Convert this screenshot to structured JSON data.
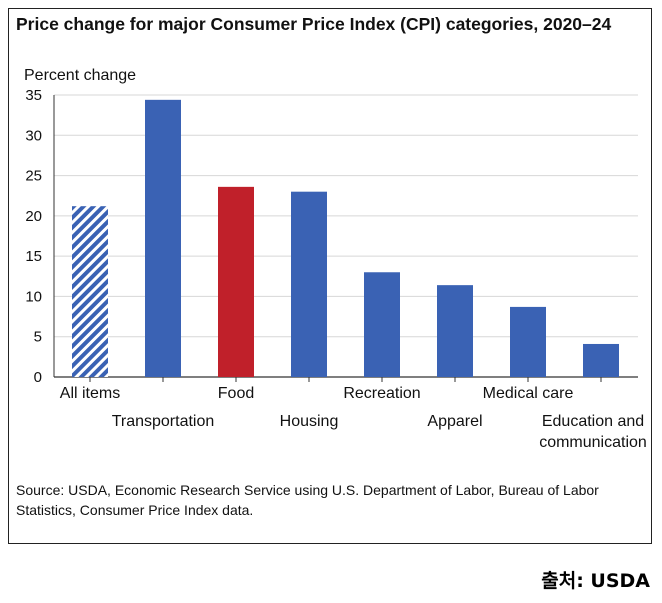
{
  "chart_data": {
    "type": "bar",
    "title": "Price change for major Consumer Price Index (CPI) categories, 2020–24",
    "ylabel": "Percent change",
    "ylim": [
      0,
      35
    ],
    "yticks": [
      0,
      5,
      10,
      15,
      20,
      25,
      30,
      35
    ],
    "grid": true,
    "categories": [
      "All items",
      "Transportation",
      "Food",
      "Housing",
      "Recreation",
      "Apparel",
      "Medical care",
      "Education and communication"
    ],
    "values": [
      21.2,
      34.4,
      23.6,
      23.0,
      13.0,
      11.4,
      8.7,
      4.1
    ],
    "bar_styles": [
      "hatched",
      "solid",
      "highlight",
      "solid",
      "solid",
      "solid",
      "solid",
      "solid"
    ],
    "colors": {
      "bar": "#3a62b4",
      "highlight": "#c0202a",
      "hatch": "#3a62b4"
    }
  },
  "source": "Source: USDA, Economic Research Service using U.S. Department of Labor, Bureau of Labor Statistics, Consumer Price Index data.",
  "credit": "출처: USDA"
}
